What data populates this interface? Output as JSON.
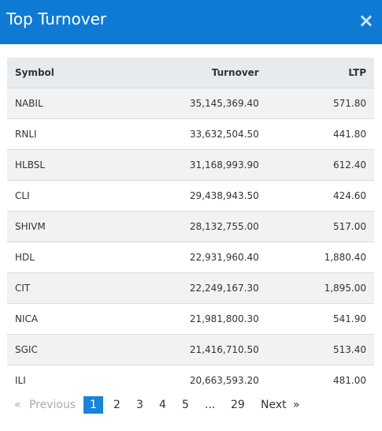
{
  "header": {
    "title": "Top Turnover",
    "close": "×"
  },
  "table": {
    "columns": [
      "Symbol",
      "Turnover",
      "LTP"
    ],
    "rows": [
      [
        "NABIL",
        "35,145,369.40",
        "571.80"
      ],
      [
        "RNLI",
        "33,632,504.50",
        "441.80"
      ],
      [
        "HLBSL",
        "31,168,993.90",
        "612.40"
      ],
      [
        "CLI",
        "29,438,943.50",
        "424.60"
      ],
      [
        "SHIVM",
        "28,132,755.00",
        "517.00"
      ],
      [
        "HDL",
        "22,931,960.40",
        "1,880.40"
      ],
      [
        "CIT",
        "22,249,167.30",
        "1,895.00"
      ],
      [
        "NICA",
        "21,981,800.30",
        "541.90"
      ],
      [
        "SGIC",
        "21,416,710.50",
        "513.40"
      ],
      [
        "ILI",
        "20,663,593.20",
        "481.00"
      ]
    ]
  },
  "pagination": [
    "«",
    "Previous",
    "1",
    "2",
    "3",
    "4",
    "5",
    "...",
    "29",
    "Next",
    "»"
  ]
}
